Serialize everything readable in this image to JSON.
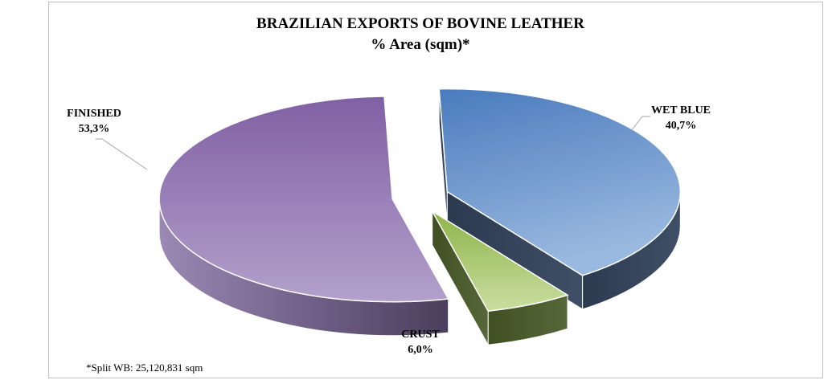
{
  "chart_data": {
    "type": "pie",
    "title": "BRAZILIAN EXPORTS OF BOVINE LEATHER",
    "subtitle": "% Area (sqm)*",
    "slices": [
      {
        "label": "WET BLUE",
        "value": 40.7,
        "value_label": "40,7%",
        "color": "#5b86c3"
      },
      {
        "label": "CRUST",
        "value": 6.0,
        "value_label": "6,0%",
        "color": "#9bbb59"
      },
      {
        "label": "FINISHED",
        "value": 53.3,
        "value_label": "53,3%",
        "color": "#8064a2"
      }
    ],
    "footnote": "*Split WB: 25,120,831 sqm",
    "legend": "none",
    "exploded": true,
    "style": "3d"
  }
}
